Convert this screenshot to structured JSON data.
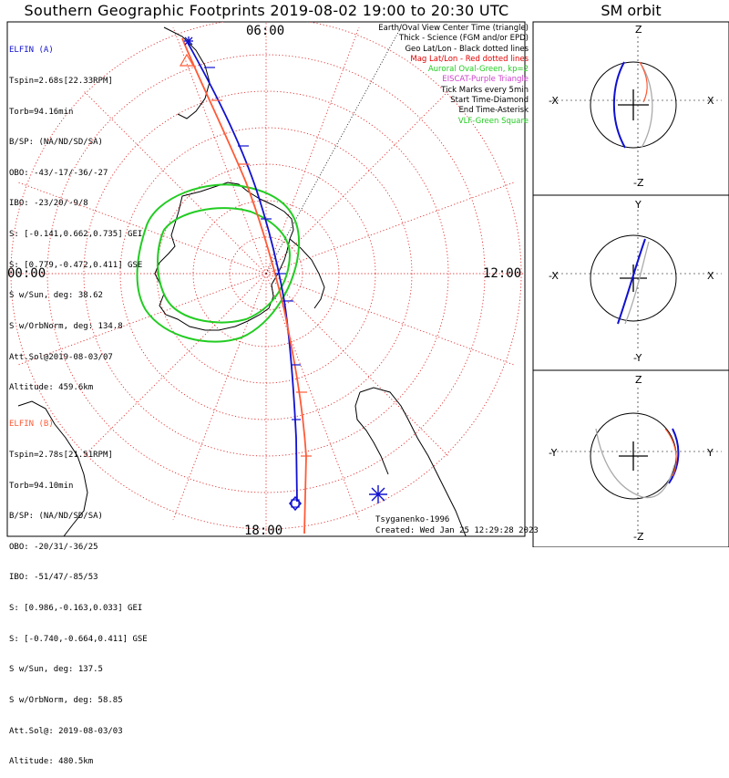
{
  "title": "Southern Geographic Footprints 2019-08-02 19:00 to 20:30 UTC",
  "sm_title": "SM orbit",
  "time_labels": {
    "top": "06:00",
    "left": "00:00",
    "right": "12:00",
    "bottom": "18:00"
  },
  "elfin_a": {
    "name": "ELFIN (A)",
    "color": "#1010d0",
    "lines": [
      "Tspin=2.68s[22.33RPM]",
      "Torb=94.16min",
      "B/SP: (NA/ND/SD/SA)",
      "OBO: -43/-17/-36/-27",
      "IBO: -23/20/-9/8",
      "S: [-0.141,0.662,0.735] GEI",
      "S: [0.779,-0.472,0.411] GSE",
      "S w/Sun, deg: 38.62",
      "S w/OrbNorm, deg: 134.8",
      "Att.Sol@2019-08-03/07",
      "Altitude: 459.6km"
    ]
  },
  "elfin_b": {
    "name": "ELFIN (B)",
    "color": "#ff5a36",
    "lines": [
      "Tspin=2.78s[21.51RPM]",
      "Torb=94.10min",
      "B/SP: (NA/ND/SD/SA)",
      "OBO: -20/31/-36/25",
      "IBO: -51/47/-85/53",
      "S: [0.986,-0.163,0.033] GEI",
      "S: [-0.740,-0.664,0.411] GSE",
      "S w/Sun, deg: 137.5",
      "S w/OrbNorm, deg: 58.85",
      "Att.Sol@: 2019-08-03/03",
      "Altitude: 480.5km"
    ]
  },
  "legend": [
    {
      "text": "Earth/Oval View Center Time (triangle)",
      "color": "#000000"
    },
    {
      "text": "Thick - Science (FGM and/or EPD)",
      "color": "#000000"
    },
    {
      "text": "Geo Lat/Lon - Black dotted lines",
      "color": "#000000"
    },
    {
      "text": "Mag Lat/Lon - Red dotted lines",
      "color": "#e00000"
    },
    {
      "text": "Auroral Oval-Green, kp=2",
      "color": "#22cc22"
    },
    {
      "text": "EISCAT-Purple Triangle",
      "color": "#cc44cc"
    },
    {
      "text": "Tick Marks every 5min",
      "color": "#000000"
    },
    {
      "text": "Start Time-Diamond",
      "color": "#000000"
    },
    {
      "text": "End Time-Asterisk",
      "color": "#000000"
    },
    {
      "text": "VLF-Green Square",
      "color": "#22cc22"
    }
  ],
  "credit_1": "Tsyganenko-1996",
  "credit_2": "Created: Wed Jan 25 12:29:28 2023",
  "sm_panels": [
    {
      "top": "Z",
      "bottom": "-Z",
      "left": "-X",
      "right": "X"
    },
    {
      "top": "Y",
      "bottom": "-Y",
      "left": "-X",
      "right": "X"
    },
    {
      "top": "Z",
      "bottom": "-Z",
      "left": "-Y",
      "right": "Y"
    }
  ],
  "colors": {
    "elfin_a": "#1010d0",
    "elfin_b": "#ff5a36",
    "oval": "#22cc22",
    "grid_mag": "#e03030"
  }
}
